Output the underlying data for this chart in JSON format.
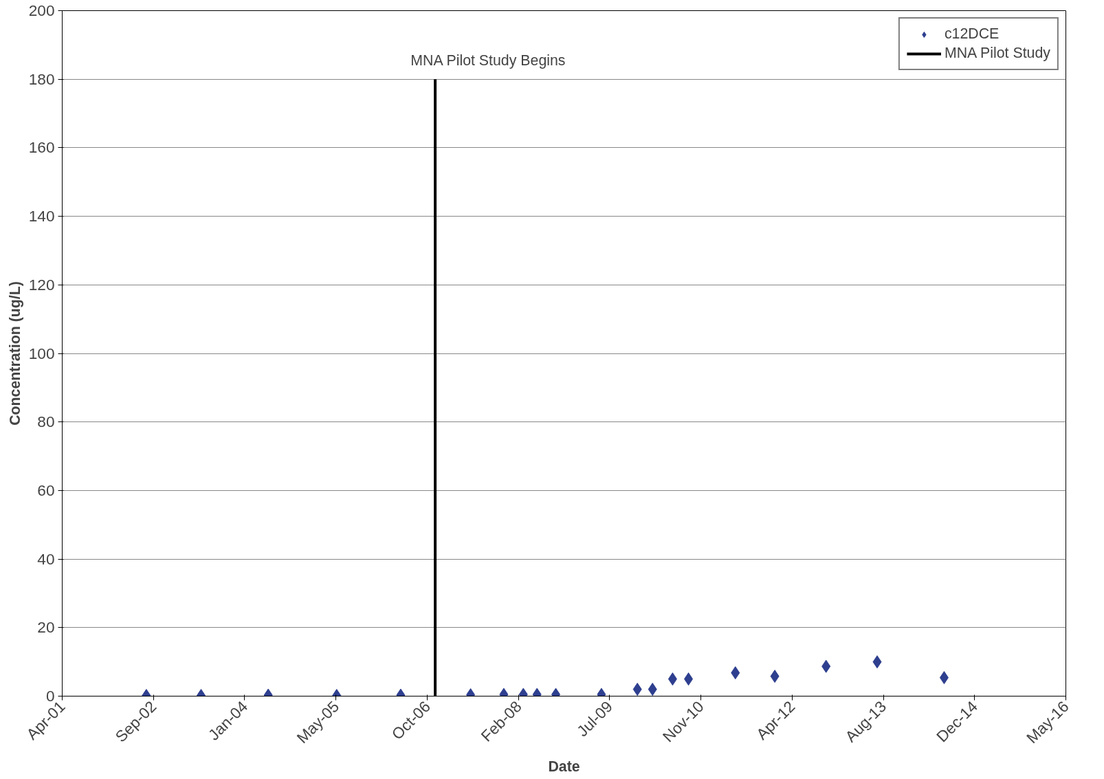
{
  "chart_data": {
    "type": "scatter",
    "xlabel": "Date",
    "ylabel": "Concentration (ug/L)",
    "xlim": [
      "2001-04-19",
      "2016-05-10"
    ],
    "xticks": [
      {
        "value": "2001-04-19",
        "label": "Apr-01"
      },
      {
        "value": "2002-09-01",
        "label": "Sep-02"
      },
      {
        "value": "2004-01-14",
        "label": "Jan-04"
      },
      {
        "value": "2005-05-29",
        "label": "May-05"
      },
      {
        "value": "2006-10-11",
        "label": "Oct-06"
      },
      {
        "value": "2008-02-23",
        "label": "Feb-08"
      },
      {
        "value": "2009-07-06",
        "label": "Jul-09"
      },
      {
        "value": "2010-11-18",
        "label": "Nov-10"
      },
      {
        "value": "2012-04-01",
        "label": "Apr-12"
      },
      {
        "value": "2013-08-14",
        "label": "Aug-13"
      },
      {
        "value": "2014-12-27",
        "label": "Dec-14"
      },
      {
        "value": "2016-05-10",
        "label": "May-16"
      }
    ],
    "ylim": [
      0,
      200
    ],
    "yticks": [
      0,
      20,
      40,
      60,
      80,
      100,
      120,
      140,
      160,
      180,
      200
    ],
    "grid": "y",
    "legend": "top right",
    "annotations": [
      "MNA Pilot Study Begins"
    ],
    "series": [
      {
        "name": "c12DCE",
        "marker": "diamond",
        "color": "#2e3f8f",
        "x": [
          "2002-07-24",
          "2003-05-20",
          "2004-05-22",
          "2005-06-01",
          "2006-05-18",
          "2007-06-05",
          "2007-12-04",
          "2008-03-20",
          "2008-06-03",
          "2008-09-14",
          "2009-05-22",
          "2009-12-05",
          "2010-02-26",
          "2010-06-16",
          "2010-09-11",
          "2011-05-26",
          "2011-12-28",
          "2012-10-04",
          "2013-07-11",
          "2014-07-13"
        ],
        "values": [
          0.2,
          0.2,
          0.3,
          0.2,
          0.3,
          0.4,
          0.5,
          0.5,
          0.5,
          0.5,
          0.5,
          2,
          2,
          5,
          5,
          6.8,
          5.8,
          8.7,
          10,
          5.4
        ]
      },
      {
        "name": "MNA Pilot Study",
        "type": "line",
        "color": "#000000",
        "line_style": "solid",
        "x": [
          "2006-11-23",
          "2006-11-23"
        ],
        "values": [
          0,
          180
        ]
      }
    ]
  }
}
